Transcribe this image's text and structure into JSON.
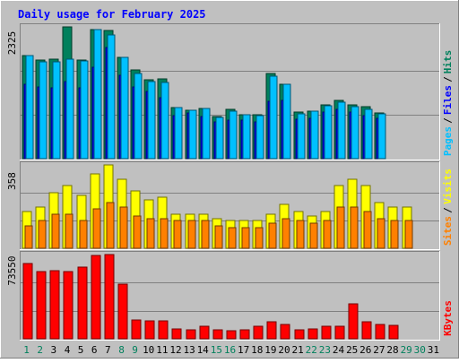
{
  "chart_data": {
    "title": "Daily usage for February 2025",
    "days": [
      "1",
      "2",
      "3",
      "4",
      "5",
      "6",
      "7",
      "8",
      "9",
      "10",
      "11",
      "12",
      "13",
      "14",
      "15",
      "16",
      "17",
      "18",
      "19",
      "20",
      "21",
      "22",
      "23",
      "24",
      "25",
      "26",
      "27",
      "28",
      "29",
      "30",
      "31"
    ],
    "weekend_days": [
      "1",
      "2",
      "8",
      "9",
      "15",
      "16",
      "22",
      "23",
      "29",
      "30"
    ],
    "panels": [
      {
        "id": "hits-panel",
        "type": "bar",
        "max_label": "2325",
        "ylim": [
          0,
          2325
        ],
        "legend": [
          {
            "label": "Hits",
            "color": "#00805c"
          },
          {
            "label": "Files",
            "color": "#0000ff"
          },
          {
            "label": "Pages",
            "color": "#00c0ff"
          }
        ],
        "series": [
          {
            "name": "Hits",
            "color": "#00805c",
            "values": [
              1825,
              1745,
              1755,
              2325,
              1745,
              2285,
              2265,
              1795,
              1560,
              1385,
              1415,
              905,
              855,
              885,
              745,
              875,
              775,
              775,
              1510,
              1315,
              825,
              835,
              955,
              1025,
              955,
              915,
              805,
              0,
              0,
              0,
              0
            ]
          },
          {
            "name": "Files",
            "color": "#0000ff",
            "values": [
              1305,
              1265,
              1255,
              1355,
              1245,
              1615,
              1965,
              1465,
              1265,
              1185,
              1075,
              765,
              805,
              745,
              655,
              685,
              675,
              655,
              1015,
              1035,
              695,
              705,
              825,
              865,
              815,
              755,
              715,
              0,
              0,
              0,
              0
            ]
          },
          {
            "name": "Pages",
            "color": "#00c0ff",
            "values": [
              1825,
              1715,
              1715,
              1755,
              1725,
              2285,
              2185,
              1785,
              1495,
              1355,
              1345,
              895,
              855,
              885,
              735,
              835,
              775,
              765,
              1455,
              1305,
              795,
              835,
              935,
              995,
              925,
              875,
              785,
              0,
              0,
              0,
              0
            ]
          }
        ]
      },
      {
        "id": "visits-panel",
        "type": "bar",
        "max_label": "358",
        "ylim": [
          0,
          358
        ],
        "legend": [
          {
            "label": "Visits",
            "color": "#ffff00"
          },
          {
            "label": "Sites",
            "color": "#ff8000"
          }
        ],
        "series": [
          {
            "name": "Visits",
            "color": "#ffff00",
            "values": [
              158,
              178,
              238,
              268,
              228,
              318,
              358,
              298,
              248,
              208,
              218,
              148,
              148,
              148,
              128,
              118,
              118,
              118,
              148,
              188,
              158,
              138,
              158,
              268,
              298,
              268,
              198,
              178,
              178,
              0,
              0
            ]
          },
          {
            "name": "Sites",
            "color": "#ff8000",
            "values": [
              98,
              118,
              148,
              148,
              118,
              168,
              198,
              178,
              138,
              128,
              128,
              118,
              118,
              118,
              98,
              88,
              88,
              88,
              108,
              128,
              118,
              108,
              118,
              178,
              178,
              158,
              128,
              118,
              118,
              0,
              0
            ]
          }
        ]
      },
      {
        "id": "kbytes-panel",
        "type": "bar",
        "max_label": "73550",
        "ylim": [
          0,
          73550
        ],
        "legend": [
          {
            "label": "KBytes",
            "color": "#ff0000"
          }
        ],
        "series": [
          {
            "name": "KBytes",
            "color": "#ff0000",
            "values": [
              65500,
              58800,
              59800,
              58800,
              62700,
              72600,
              73550,
              48000,
              16700,
              15700,
              15700,
              8800,
              8100,
              10800,
              7800,
              7400,
              7800,
              11200,
              14700,
              12700,
              8100,
              8800,
              10800,
              10800,
              30400,
              14700,
              12700,
              11800,
              0,
              0,
              0
            ]
          }
        ]
      }
    ]
  }
}
